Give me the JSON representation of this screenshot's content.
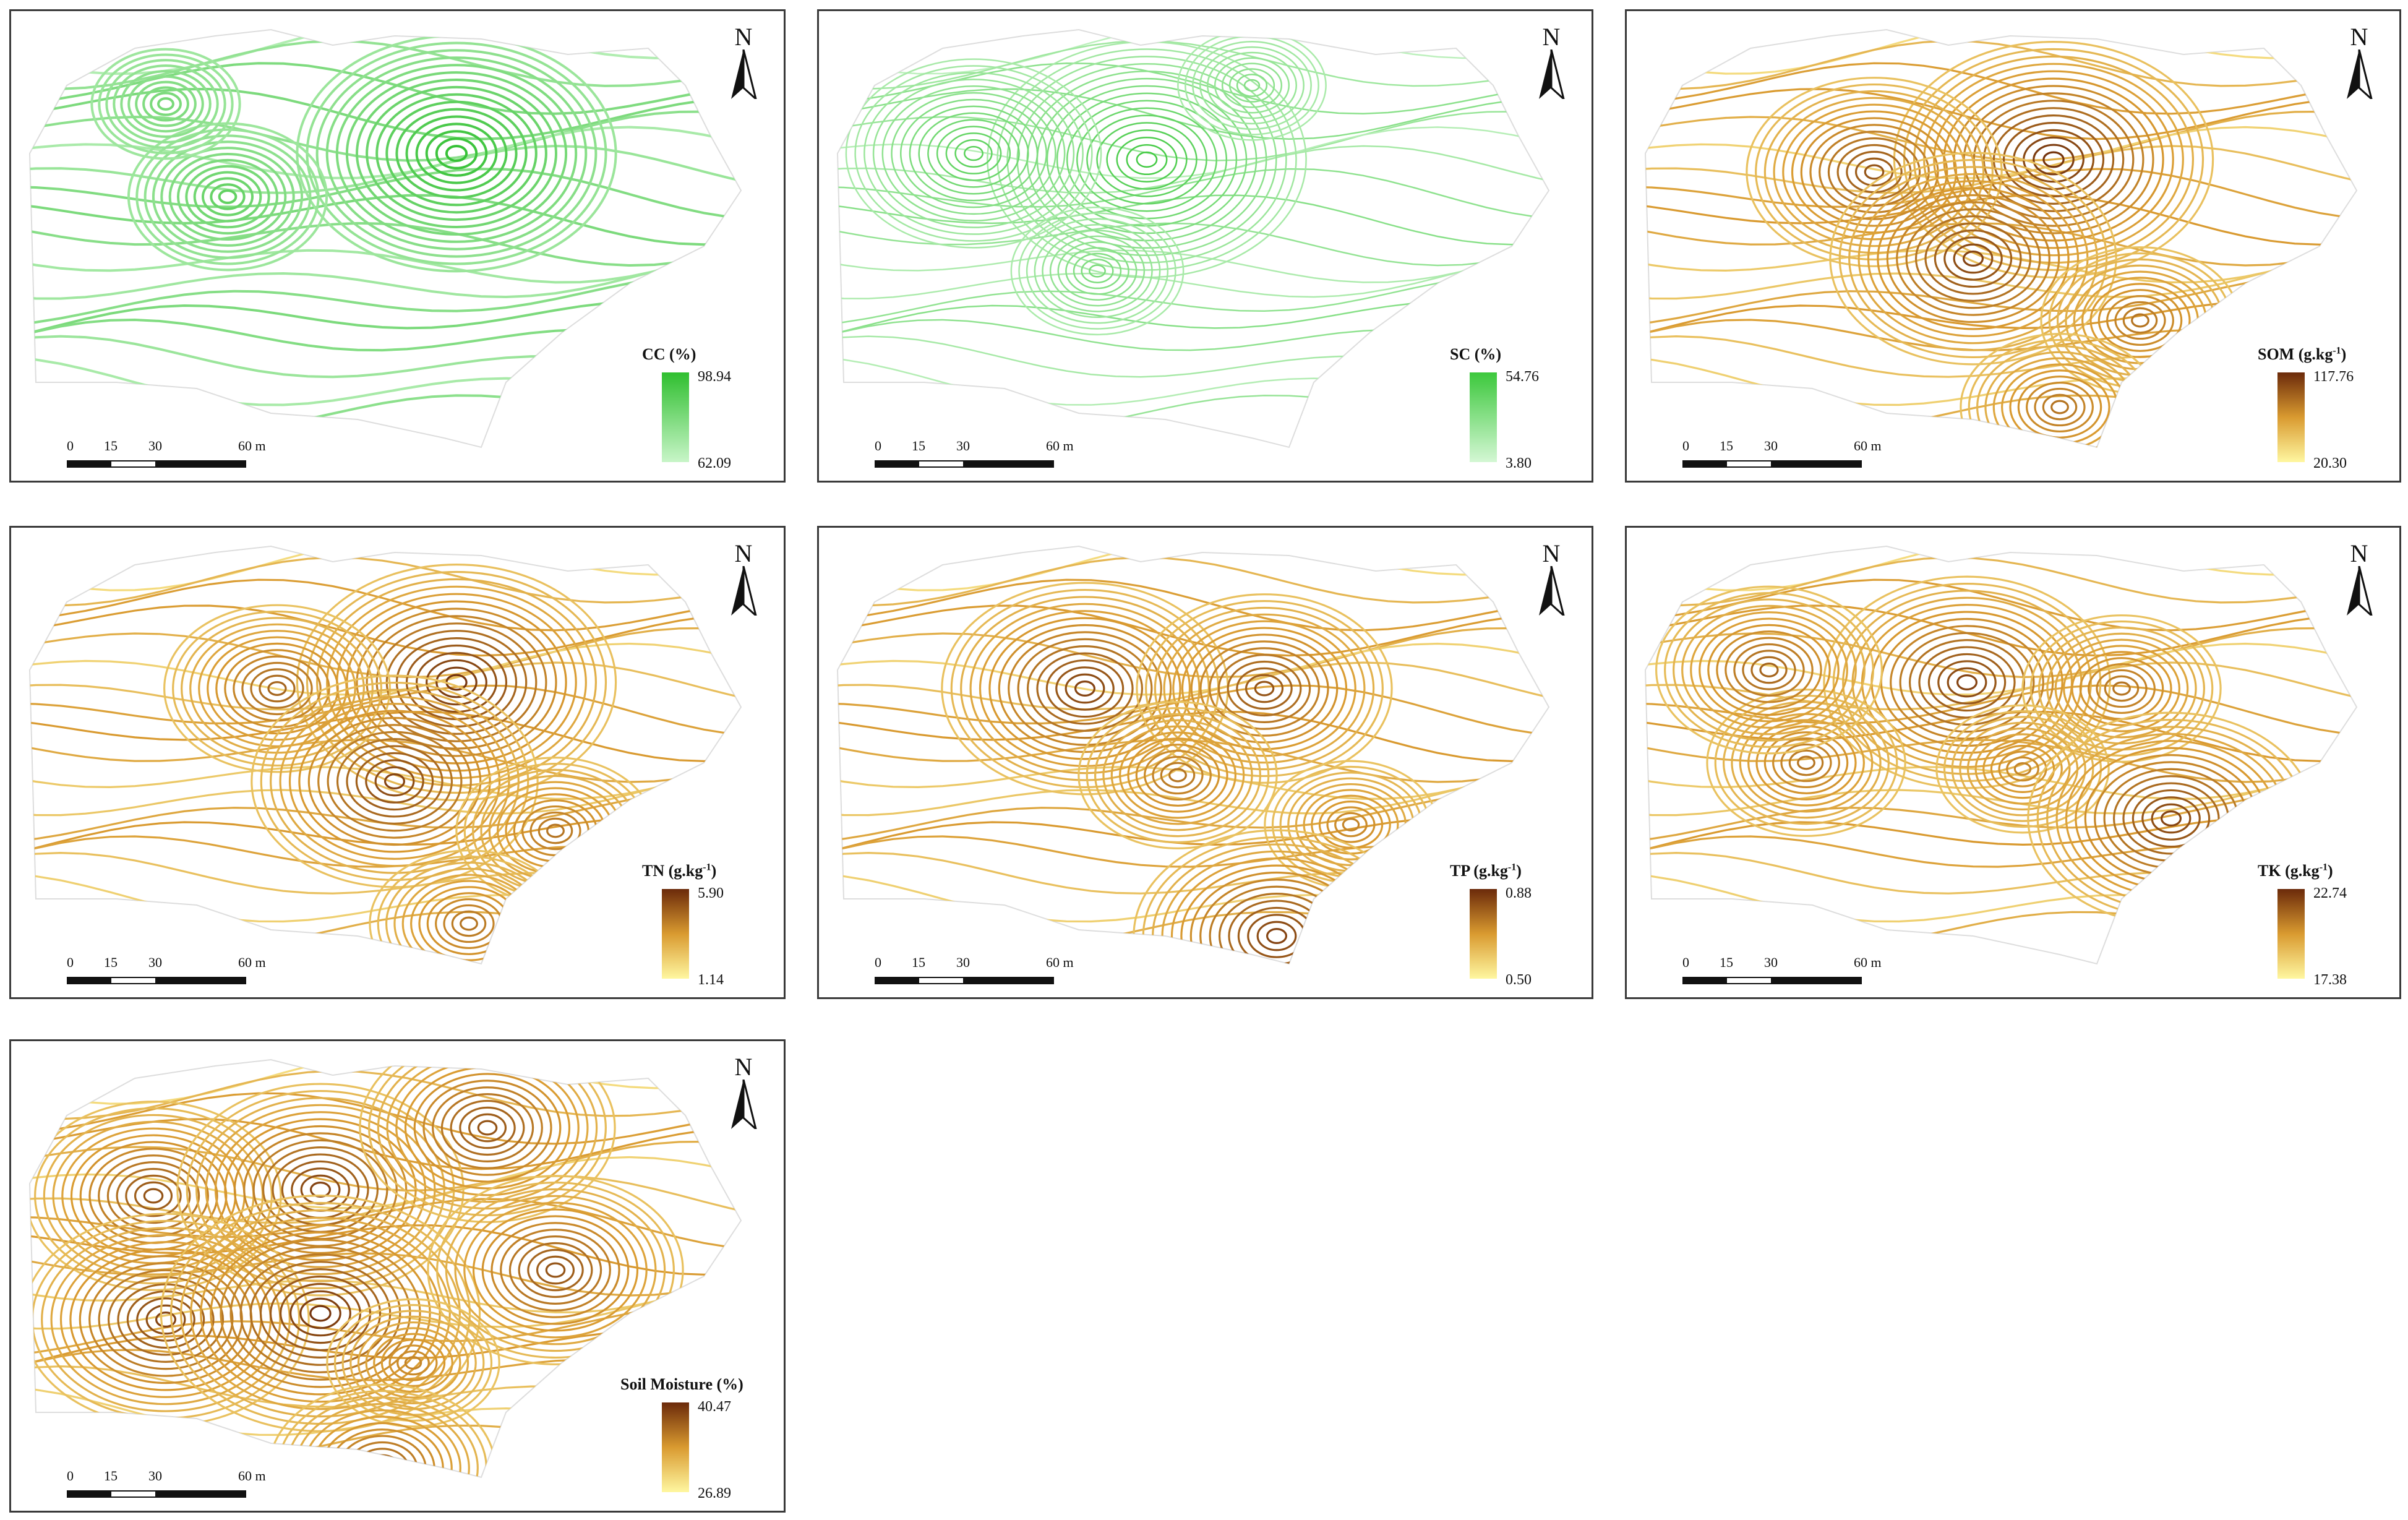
{
  "panels": [
    {
      "id": "cc",
      "north_label": "N",
      "legend_title": "CC (%)",
      "legend_unit_sup": "",
      "max": "98.94",
      "min": "62.09",
      "palette": "green"
    },
    {
      "id": "sc",
      "north_label": "N",
      "legend_title": "SC (%)",
      "legend_unit_sup": "",
      "max": "54.76",
      "min": "3.80",
      "palette": "lightgreen"
    },
    {
      "id": "som",
      "north_label": "N",
      "legend_title": "SOM (g.kg",
      "legend_unit_sup": "-1",
      "legend_close": ")",
      "max": "117.76",
      "min": "20.30",
      "palette": "brown"
    },
    {
      "id": "tn",
      "north_label": "N",
      "legend_title": "TN (g.kg",
      "legend_unit_sup": "-1",
      "legend_close": ")",
      "max": "5.90",
      "min": "1.14",
      "palette": "brown"
    },
    {
      "id": "tp",
      "north_label": "N",
      "legend_title": "TP (g.kg",
      "legend_unit_sup": "-1",
      "legend_close": ")",
      "max": "0.88",
      "min": "0.50",
      "palette": "brown"
    },
    {
      "id": "tk",
      "north_label": "N",
      "legend_title": "TK (g.kg",
      "legend_unit_sup": "-1",
      "legend_close": ")",
      "max": "22.74",
      "min": "17.38",
      "palette": "brown"
    },
    {
      "id": "sm",
      "north_label": "N",
      "legend_title": "Soil Moisture (%)",
      "legend_unit_sup": "",
      "max": "40.47",
      "min": "26.89",
      "palette": "brown"
    }
  ],
  "scalebar": {
    "labels": [
      "0",
      "15",
      "30",
      "60 m"
    ]
  },
  "colors": {
    "green_dark": "#2fbf2f",
    "green_light": "#c8f5c8",
    "lightgreen_dark": "#3cc83c",
    "lightgreen_light": "#d4f7d4",
    "brown_dark": "#6b2a0a",
    "brown_mid": "#d99a30",
    "brown_light": "#fff7a0",
    "frame": "#3a3a3a"
  }
}
